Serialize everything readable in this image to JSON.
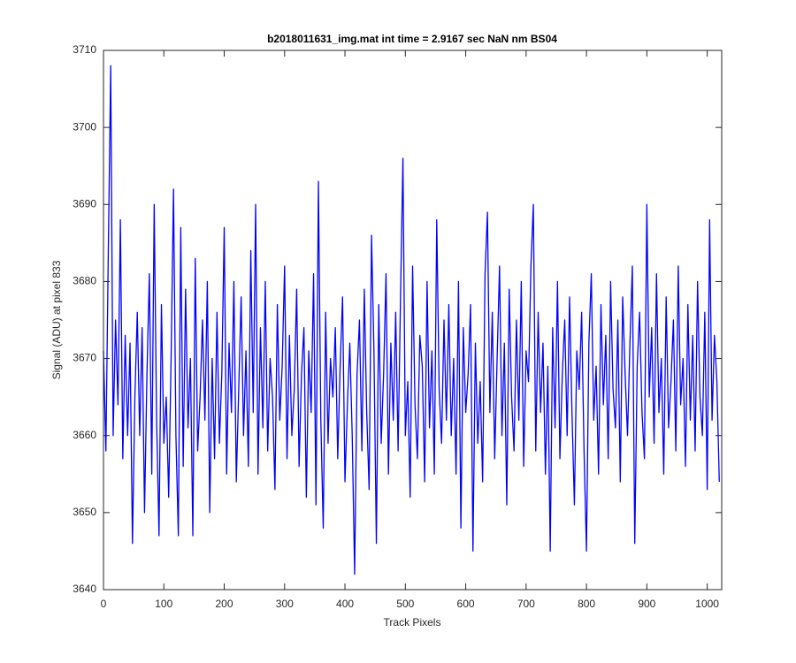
{
  "chart_data": {
    "type": "line",
    "title": "b2018011631_img.mat int time = 2.9167 sec  NaN nm BS04",
    "x_label": "Track Pixels",
    "y_label": "Signal (ADU) at pixel 833",
    "color": "#0000ff",
    "xlim": [
      0,
      1024
    ],
    "xticks": [
      0,
      100,
      200,
      300,
      400,
      500,
      600,
      700,
      800,
      900,
      1000
    ],
    "ylim": [
      3640,
      3710
    ],
    "yticks": [
      3640,
      3650,
      3660,
      3670,
      3680,
      3690,
      3700,
      3710
    ],
    "x": [
      0,
      4,
      8,
      12,
      16,
      20,
      24,
      28,
      32,
      36,
      40,
      44,
      48,
      52,
      56,
      60,
      64,
      68,
      72,
      76,
      80,
      84,
      88,
      92,
      96,
      100,
      104,
      108,
      112,
      116,
      120,
      124,
      128,
      132,
      136,
      140,
      144,
      148,
      152,
      156,
      160,
      164,
      168,
      172,
      176,
      180,
      184,
      188,
      192,
      196,
      200,
      204,
      208,
      212,
      216,
      220,
      224,
      228,
      232,
      236,
      240,
      244,
      248,
      252,
      256,
      260,
      264,
      268,
      272,
      276,
      280,
      284,
      288,
      292,
      296,
      300,
      304,
      308,
      312,
      316,
      320,
      324,
      328,
      332,
      336,
      340,
      344,
      348,
      352,
      356,
      360,
      364,
      368,
      372,
      376,
      380,
      384,
      388,
      392,
      396,
      400,
      404,
      408,
      412,
      416,
      420,
      424,
      428,
      432,
      436,
      440,
      444,
      448,
      452,
      456,
      460,
      464,
      468,
      472,
      476,
      480,
      484,
      488,
      492,
      496,
      500,
      504,
      508,
      512,
      516,
      520,
      524,
      528,
      532,
      536,
      540,
      544,
      548,
      552,
      556,
      560,
      564,
      568,
      572,
      576,
      580,
      584,
      588,
      592,
      596,
      600,
      604,
      608,
      612,
      616,
      620,
      624,
      628,
      632,
      636,
      640,
      644,
      648,
      652,
      656,
      660,
      664,
      668,
      672,
      676,
      680,
      684,
      688,
      692,
      696,
      700,
      704,
      708,
      712,
      716,
      720,
      724,
      728,
      732,
      736,
      740,
      744,
      748,
      752,
      756,
      760,
      764,
      768,
      772,
      776,
      780,
      784,
      788,
      792,
      796,
      800,
      804,
      808,
      812,
      816,
      820,
      824,
      828,
      832,
      836,
      840,
      844,
      848,
      852,
      856,
      860,
      864,
      868,
      872,
      876,
      880,
      884,
      888,
      892,
      896,
      900,
      904,
      908,
      912,
      916,
      920,
      924,
      928,
      932,
      936,
      940,
      944,
      948,
      952,
      956,
      960,
      964,
      968,
      972,
      976,
      980,
      984,
      988,
      992,
      996,
      1000,
      1004,
      1008,
      1012,
      1016,
      1020
    ],
    "values": [
      3671,
      3658,
      3684,
      3708,
      3660,
      3675,
      3664,
      3688,
      3657,
      3673,
      3660,
      3672,
      3646,
      3665,
      3676,
      3660,
      3674,
      3650,
      3668,
      3681,
      3655,
      3690,
      3662,
      3647,
      3677,
      3659,
      3665,
      3652,
      3670,
      3692,
      3660,
      3647,
      3687,
      3656,
      3679,
      3661,
      3670,
      3647,
      3683,
      3658,
      3665,
      3675,
      3662,
      3680,
      3650,
      3670,
      3657,
      3676,
      3659,
      3668,
      3687,
      3655,
      3672,
      3663,
      3680,
      3654,
      3666,
      3678,
      3660,
      3671,
      3656,
      3684,
      3663,
      3690,
      3655,
      3674,
      3661,
      3680,
      3658,
      3670,
      3665,
      3653,
      3677,
      3662,
      3669,
      3682,
      3657,
      3673,
      3660,
      3666,
      3679,
      3656,
      3668,
      3674,
      3652,
      3671,
      3663,
      3681,
      3651,
      3693,
      3662,
      3648,
      3676,
      3659,
      3670,
      3665,
      3674,
      3657,
      3669,
      3678,
      3654,
      3664,
      3672,
      3660,
      3642,
      3668,
      3675,
      3658,
      3679,
      3663,
      3653,
      3686,
      3671,
      3646,
      3677,
      3659,
      3668,
      3681,
      3655,
      3672,
      3662,
      3676,
      3658,
      3678,
      3696,
      3660,
      3667,
      3652,
      3682,
      3664,
      3657,
      3673,
      3669,
      3654,
      3680,
      3661,
      3671,
      3655,
      3688,
      3666,
      3659,
      3675,
      3662,
      3677,
      3660,
      3670,
      3655,
      3680,
      3648,
      3674,
      3663,
      3668,
      3677,
      3645,
      3672,
      3659,
      3667,
      3654,
      3681,
      3689,
      3663,
      3676,
      3657,
      3670,
      3682,
      3660,
      3672,
      3651,
      3679,
      3665,
      3658,
      3675,
      3662,
      3680,
      3656,
      3671,
      3667,
      3682,
      3690,
      3658,
      3676,
      3663,
      3672,
      3655,
      3669,
      3645,
      3674,
      3661,
      3680,
      3657,
      3668,
      3675,
      3660,
      3678,
      3663,
      3651,
      3671,
      3666,
      3676,
      3658,
      3645,
      3672,
      3681,
      3662,
      3669,
      3655,
      3677,
      3664,
      3673,
      3657,
      3680,
      3666,
      3661,
      3675,
      3654,
      3678,
      3668,
      3660,
      3672,
      3682,
      3646,
      3669,
      3676,
      3663,
      3657,
      3690,
      3665,
      3674,
      3659,
      3681,
      3663,
      3670,
      3655,
      3678,
      3661,
      3667,
      3675,
      3658,
      3682,
      3664,
      3670,
      3656,
      3677,
      3662,
      3673,
      3658,
      3680,
      3665,
      3660,
      3676,
      3653,
      3688,
      3662,
      3673,
      3667,
      3654
    ]
  }
}
